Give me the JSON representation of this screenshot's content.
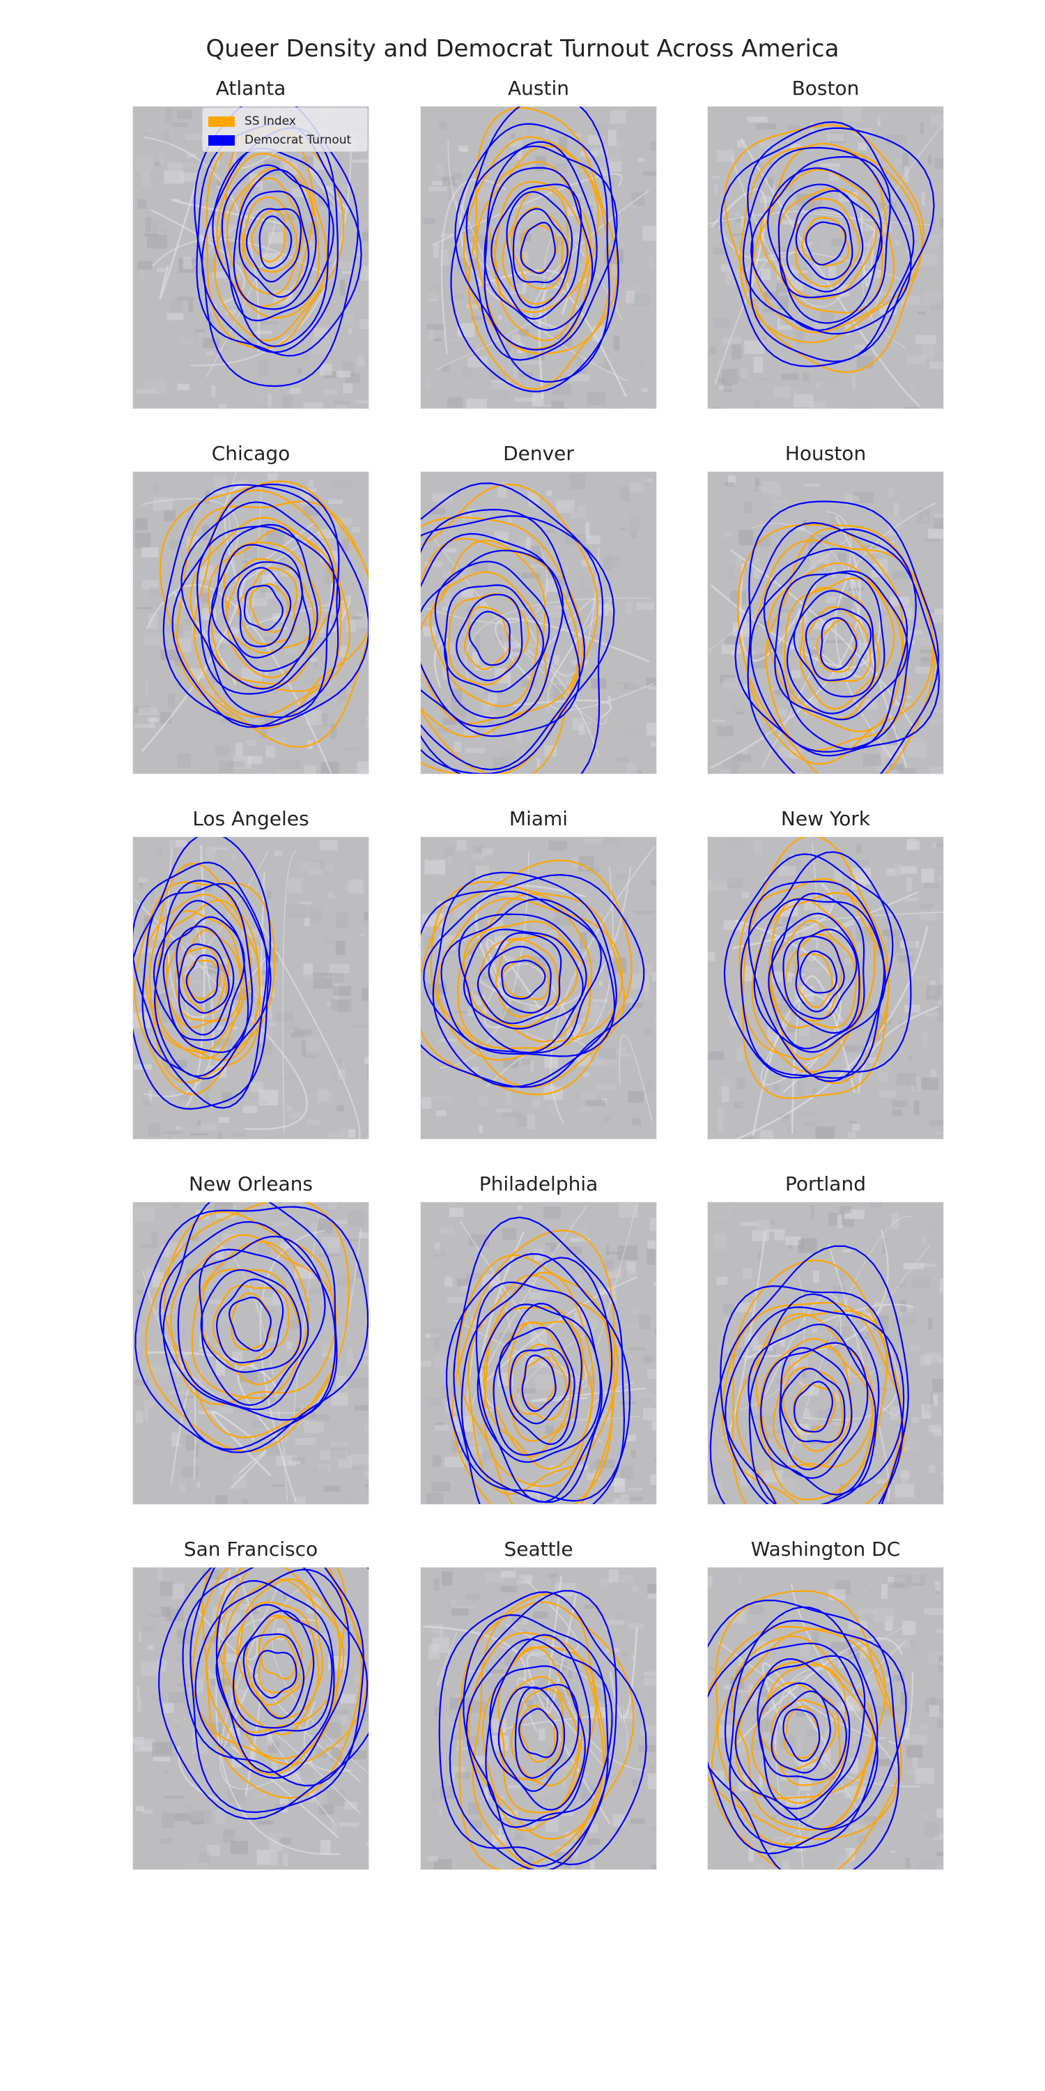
{
  "figure": {
    "title": "Queer Density and Democrat Turnout Across America"
  },
  "legend": [
    {
      "label": "SS Index",
      "color": "#FFA500"
    },
    {
      "label": "Democrat Turnout",
      "color": "#0000FF"
    }
  ],
  "chart_data": {
    "type": "contour",
    "title": "Queer Density and Democrat Turnout Across America",
    "layout": {
      "rows": 5,
      "cols": 3
    },
    "legend_position": "upper-right of first panel",
    "series": [
      {
        "name": "SS Index",
        "color": "#FFA500"
      },
      {
        "name": "Democrat Turnout",
        "color": "#0000FF"
      }
    ],
    "background": "grayscale satellite map tile",
    "panels": [
      {
        "city": "Atlanta",
        "ss_index": {
          "center": [
            0.58,
            0.43
          ],
          "spread": [
            0.33,
            0.48
          ],
          "levels": 7
        },
        "democrat_turnout": {
          "center": [
            0.6,
            0.45
          ],
          "spread": [
            0.45,
            0.58
          ],
          "levels": 9
        }
      },
      {
        "city": "Austin",
        "ss_index": {
          "center": [
            0.5,
            0.47
          ],
          "spread": [
            0.4,
            0.55
          ],
          "levels": 8
        },
        "democrat_turnout": {
          "center": [
            0.5,
            0.47
          ],
          "spread": [
            0.45,
            0.6
          ],
          "levels": 9
        }
      },
      {
        "city": "Boston",
        "ss_index": {
          "center": [
            0.5,
            0.45
          ],
          "spread": [
            0.52,
            0.5
          ],
          "levels": 7
        },
        "democrat_turnout": {
          "center": [
            0.5,
            0.45
          ],
          "spread": [
            0.52,
            0.52
          ],
          "levels": 9
        }
      },
      {
        "city": "Chicago",
        "ss_index": {
          "center": [
            0.58,
            0.45
          ],
          "spread": [
            0.55,
            0.55
          ],
          "levels": 9
        },
        "democrat_turnout": {
          "center": [
            0.55,
            0.45
          ],
          "spread": [
            0.5,
            0.55
          ],
          "levels": 9
        }
      },
      {
        "city": "Denver",
        "ss_index": {
          "center": [
            0.28,
            0.55
          ],
          "spread": [
            0.6,
            0.6
          ],
          "levels": 7
        },
        "democrat_turnout": {
          "center": [
            0.3,
            0.55
          ],
          "spread": [
            0.65,
            0.65
          ],
          "levels": 9
        }
      },
      {
        "city": "Houston",
        "ss_index": {
          "center": [
            0.55,
            0.58
          ],
          "spread": [
            0.52,
            0.55
          ],
          "levels": 8
        },
        "democrat_turnout": {
          "center": [
            0.55,
            0.57
          ],
          "spread": [
            0.55,
            0.58
          ],
          "levels": 9
        }
      },
      {
        "city": "Los Angeles",
        "ss_index": {
          "center": [
            0.3,
            0.47
          ],
          "spread": [
            0.34,
            0.45
          ],
          "levels": 9
        },
        "democrat_turnout": {
          "center": [
            0.3,
            0.47
          ],
          "spread": [
            0.38,
            0.55
          ],
          "levels": 9
        }
      },
      {
        "city": "Miami",
        "ss_index": {
          "center": [
            0.45,
            0.47
          ],
          "spread": [
            0.6,
            0.45
          ],
          "levels": 8
        },
        "democrat_turnout": {
          "center": [
            0.43,
            0.47
          ],
          "spread": [
            0.6,
            0.45
          ],
          "levels": 9
        }
      },
      {
        "city": "New York",
        "ss_index": {
          "center": [
            0.45,
            0.47
          ],
          "spread": [
            0.42,
            0.5
          ],
          "levels": 7
        },
        "democrat_turnout": {
          "center": [
            0.47,
            0.45
          ],
          "spread": [
            0.45,
            0.5
          ],
          "levels": 9
        }
      },
      {
        "city": "New Orleans",
        "ss_index": {
          "center": [
            0.5,
            0.4
          ],
          "spread": [
            0.55,
            0.5
          ],
          "levels": 7
        },
        "democrat_turnout": {
          "center": [
            0.5,
            0.4
          ],
          "spread": [
            0.58,
            0.55
          ],
          "levels": 8
        }
      },
      {
        "city": "Philadelphia",
        "ss_index": {
          "center": [
            0.5,
            0.6
          ],
          "spread": [
            0.45,
            0.6
          ],
          "levels": 9
        },
        "democrat_turnout": {
          "center": [
            0.5,
            0.6
          ],
          "spread": [
            0.5,
            0.62
          ],
          "levels": 9
        }
      },
      {
        "city": "Portland",
        "ss_index": {
          "center": [
            0.45,
            0.68
          ],
          "spread": [
            0.5,
            0.55
          ],
          "levels": 8
        },
        "democrat_turnout": {
          "center": [
            0.45,
            0.68
          ],
          "spread": [
            0.55,
            0.6
          ],
          "levels": 9
        }
      },
      {
        "city": "San Francisco",
        "ss_index": {
          "center": [
            0.62,
            0.3
          ],
          "spread": [
            0.45,
            0.55
          ],
          "levels": 10
        },
        "democrat_turnout": {
          "center": [
            0.6,
            0.35
          ],
          "spread": [
            0.58,
            0.62
          ],
          "levels": 9
        }
      },
      {
        "city": "Seattle",
        "ss_index": {
          "center": [
            0.5,
            0.55
          ],
          "spread": [
            0.42,
            0.6
          ],
          "levels": 8
        },
        "democrat_turnout": {
          "center": [
            0.5,
            0.55
          ],
          "spread": [
            0.5,
            0.62
          ],
          "levels": 9
        }
      },
      {
        "city": "Washington DC",
        "ss_index": {
          "center": [
            0.4,
            0.55
          ],
          "spread": [
            0.55,
            0.55
          ],
          "levels": 9
        },
        "democrat_turnout": {
          "center": [
            0.4,
            0.55
          ],
          "spread": [
            0.55,
            0.58
          ],
          "levels": 9
        }
      }
    ]
  }
}
